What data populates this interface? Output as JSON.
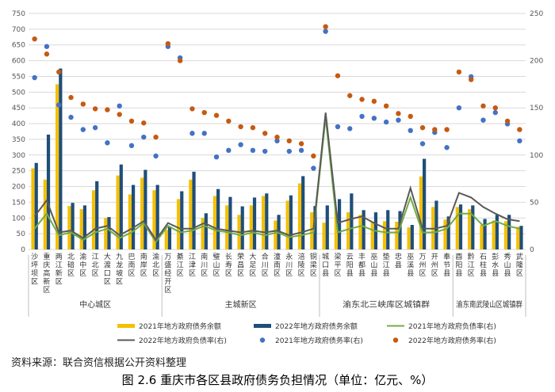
{
  "chart_data": {
    "type": "bar",
    "categories": [
      "沙坪坝区",
      "重庆高新区",
      "两江新区",
      "北碚区",
      "渝中区",
      "江北区",
      "大渡口区",
      "九龙坡区",
      "巴南区",
      "南岸区",
      "渝北区",
      "万盛经开区",
      "綦江区",
      "江津区",
      "南川区",
      "璧山区",
      "长寿区",
      "荣昌区",
      "大足区",
      "合川区",
      "潼南区",
      "永川区",
      "涪陵区",
      "铜梁区",
      "城口县",
      "梁平区",
      "云阳县",
      "丰都县",
      "巫山县",
      "垫江县",
      "忠县",
      "巫溪县",
      "万州区",
      "开州区",
      "奉节县",
      "酉阳县",
      "黔江区",
      "石柱县",
      "彭水县",
      "秀山县",
      "武隆区"
    ],
    "groups": [
      {
        "label": "中心城区",
        "start": 0,
        "end": 10
      },
      {
        "label": "主城新区",
        "start": 11,
        "end": 23
      },
      {
        "label": "渝东北三峡库区城镇群",
        "start": 24,
        "end": 34
      },
      {
        "label": "渝东南武陵山区城镇群",
        "start": 35,
        "end": 40
      }
    ],
    "y_left_ticks": [
      "0",
      "50",
      "100",
      "150",
      "200",
      "250",
      "300",
      "350",
      "400",
      "450",
      "500",
      "550",
      "600",
      "650",
      "700",
      "750"
    ],
    "y_right_ticks": [
      "0",
      "50",
      "100",
      "150",
      "200",
      "250"
    ],
    "ylim_left": [
      0,
      750
    ],
    "ylim_right": [
      0,
      250
    ],
    "series": [
      {
        "name": "2021年地方政府债务余额",
        "kind": "bar",
        "axis": "left",
        "color": "#f5c000",
        "values": [
          258,
          222,
          525,
          138,
          128,
          188,
          100,
          235,
          175,
          228,
          188,
          62,
          160,
          222,
          100,
          170,
          140,
          110,
          140,
          170,
          92,
          155,
          210,
          118,
          85,
          120,
          118,
          110,
          88,
          90,
          88,
          70,
          232,
          135,
          95,
          135,
          128,
          78,
          92,
          90,
          72
        ]
      },
      {
        "name": "2022年地方政府债务余额",
        "kind": "bar",
        "axis": "left",
        "color": "#1f4e79",
        "values": [
          275,
          365,
          575,
          148,
          140,
          217,
          103,
          270,
          205,
          253,
          205,
          72,
          185,
          247,
          115,
          192,
          167,
          137,
          165,
          178,
          110,
          172,
          233,
          138,
          140,
          160,
          178,
          125,
          118,
          125,
          122,
          78,
          288,
          155,
          105,
          143,
          140,
          97,
          110,
          110,
          75
        ]
      },
      {
        "name": "2021年地方政府负债率(右)",
        "kind": "line",
        "axis": "right",
        "color": "#70ad47",
        "values": [
          22,
          38,
          15,
          18,
          10,
          18,
          22,
          12,
          18,
          28,
          8,
          25,
          18,
          20,
          25,
          20,
          18,
          15,
          18,
          15,
          18,
          13,
          15,
          18,
          140,
          18,
          22,
          25,
          20,
          18,
          18,
          55,
          18,
          18,
          22,
          38,
          38,
          25,
          30,
          25,
          22
        ]
      },
      {
        "name": "2022年地方政府负债率(右)",
        "kind": "line",
        "axis": "right",
        "color": "#595959",
        "values": [
          35,
          52,
          18,
          20,
          12,
          22,
          25,
          15,
          22,
          30,
          10,
          28,
          22,
          22,
          28,
          22,
          20,
          18,
          20,
          18,
          20,
          15,
          18,
          22,
          145,
          28,
          32,
          35,
          28,
          22,
          22,
          65,
          22,
          22,
          25,
          60,
          55,
          45,
          38,
          32,
          30
        ]
      },
      {
        "name": "2021年地方政府债务率(右)",
        "kind": "scatter",
        "axis": "right",
        "color": "#4472c4",
        "values": [
          182,
          215,
          153,
          140,
          127,
          129,
          113,
          152,
          110,
          119,
          99,
          215,
          203,
          123,
          123,
          98,
          105,
          111,
          105,
          104,
          115,
          104,
          105,
          86,
          231,
          130,
          128,
          141,
          139,
          135,
          137,
          126,
          112,
          124,
          108,
          150,
          183,
          137,
          145,
          133,
          115
        ]
      },
      {
        "name": "2022年地方政府债务率(右)",
        "kind": "scatter",
        "axis": "right",
        "color": "#c55a11",
        "values": [
          223,
          207,
          188,
          161,
          154,
          149,
          148,
          143,
          136,
          134,
          119,
          218,
          200,
          149,
          145,
          142,
          136,
          130,
          129,
          123,
          119,
          115,
          112,
          99,
          236,
          184,
          163,
          159,
          157,
          152,
          144,
          141,
          129,
          127,
          127,
          188,
          180,
          152,
          150,
          136,
          127
        ]
      }
    ]
  },
  "source": "资料来源：联合资信根据公开资料整理",
  "caption": "图 2.6   重庆市各区县政府债务负担情况（单位：亿元、%）"
}
